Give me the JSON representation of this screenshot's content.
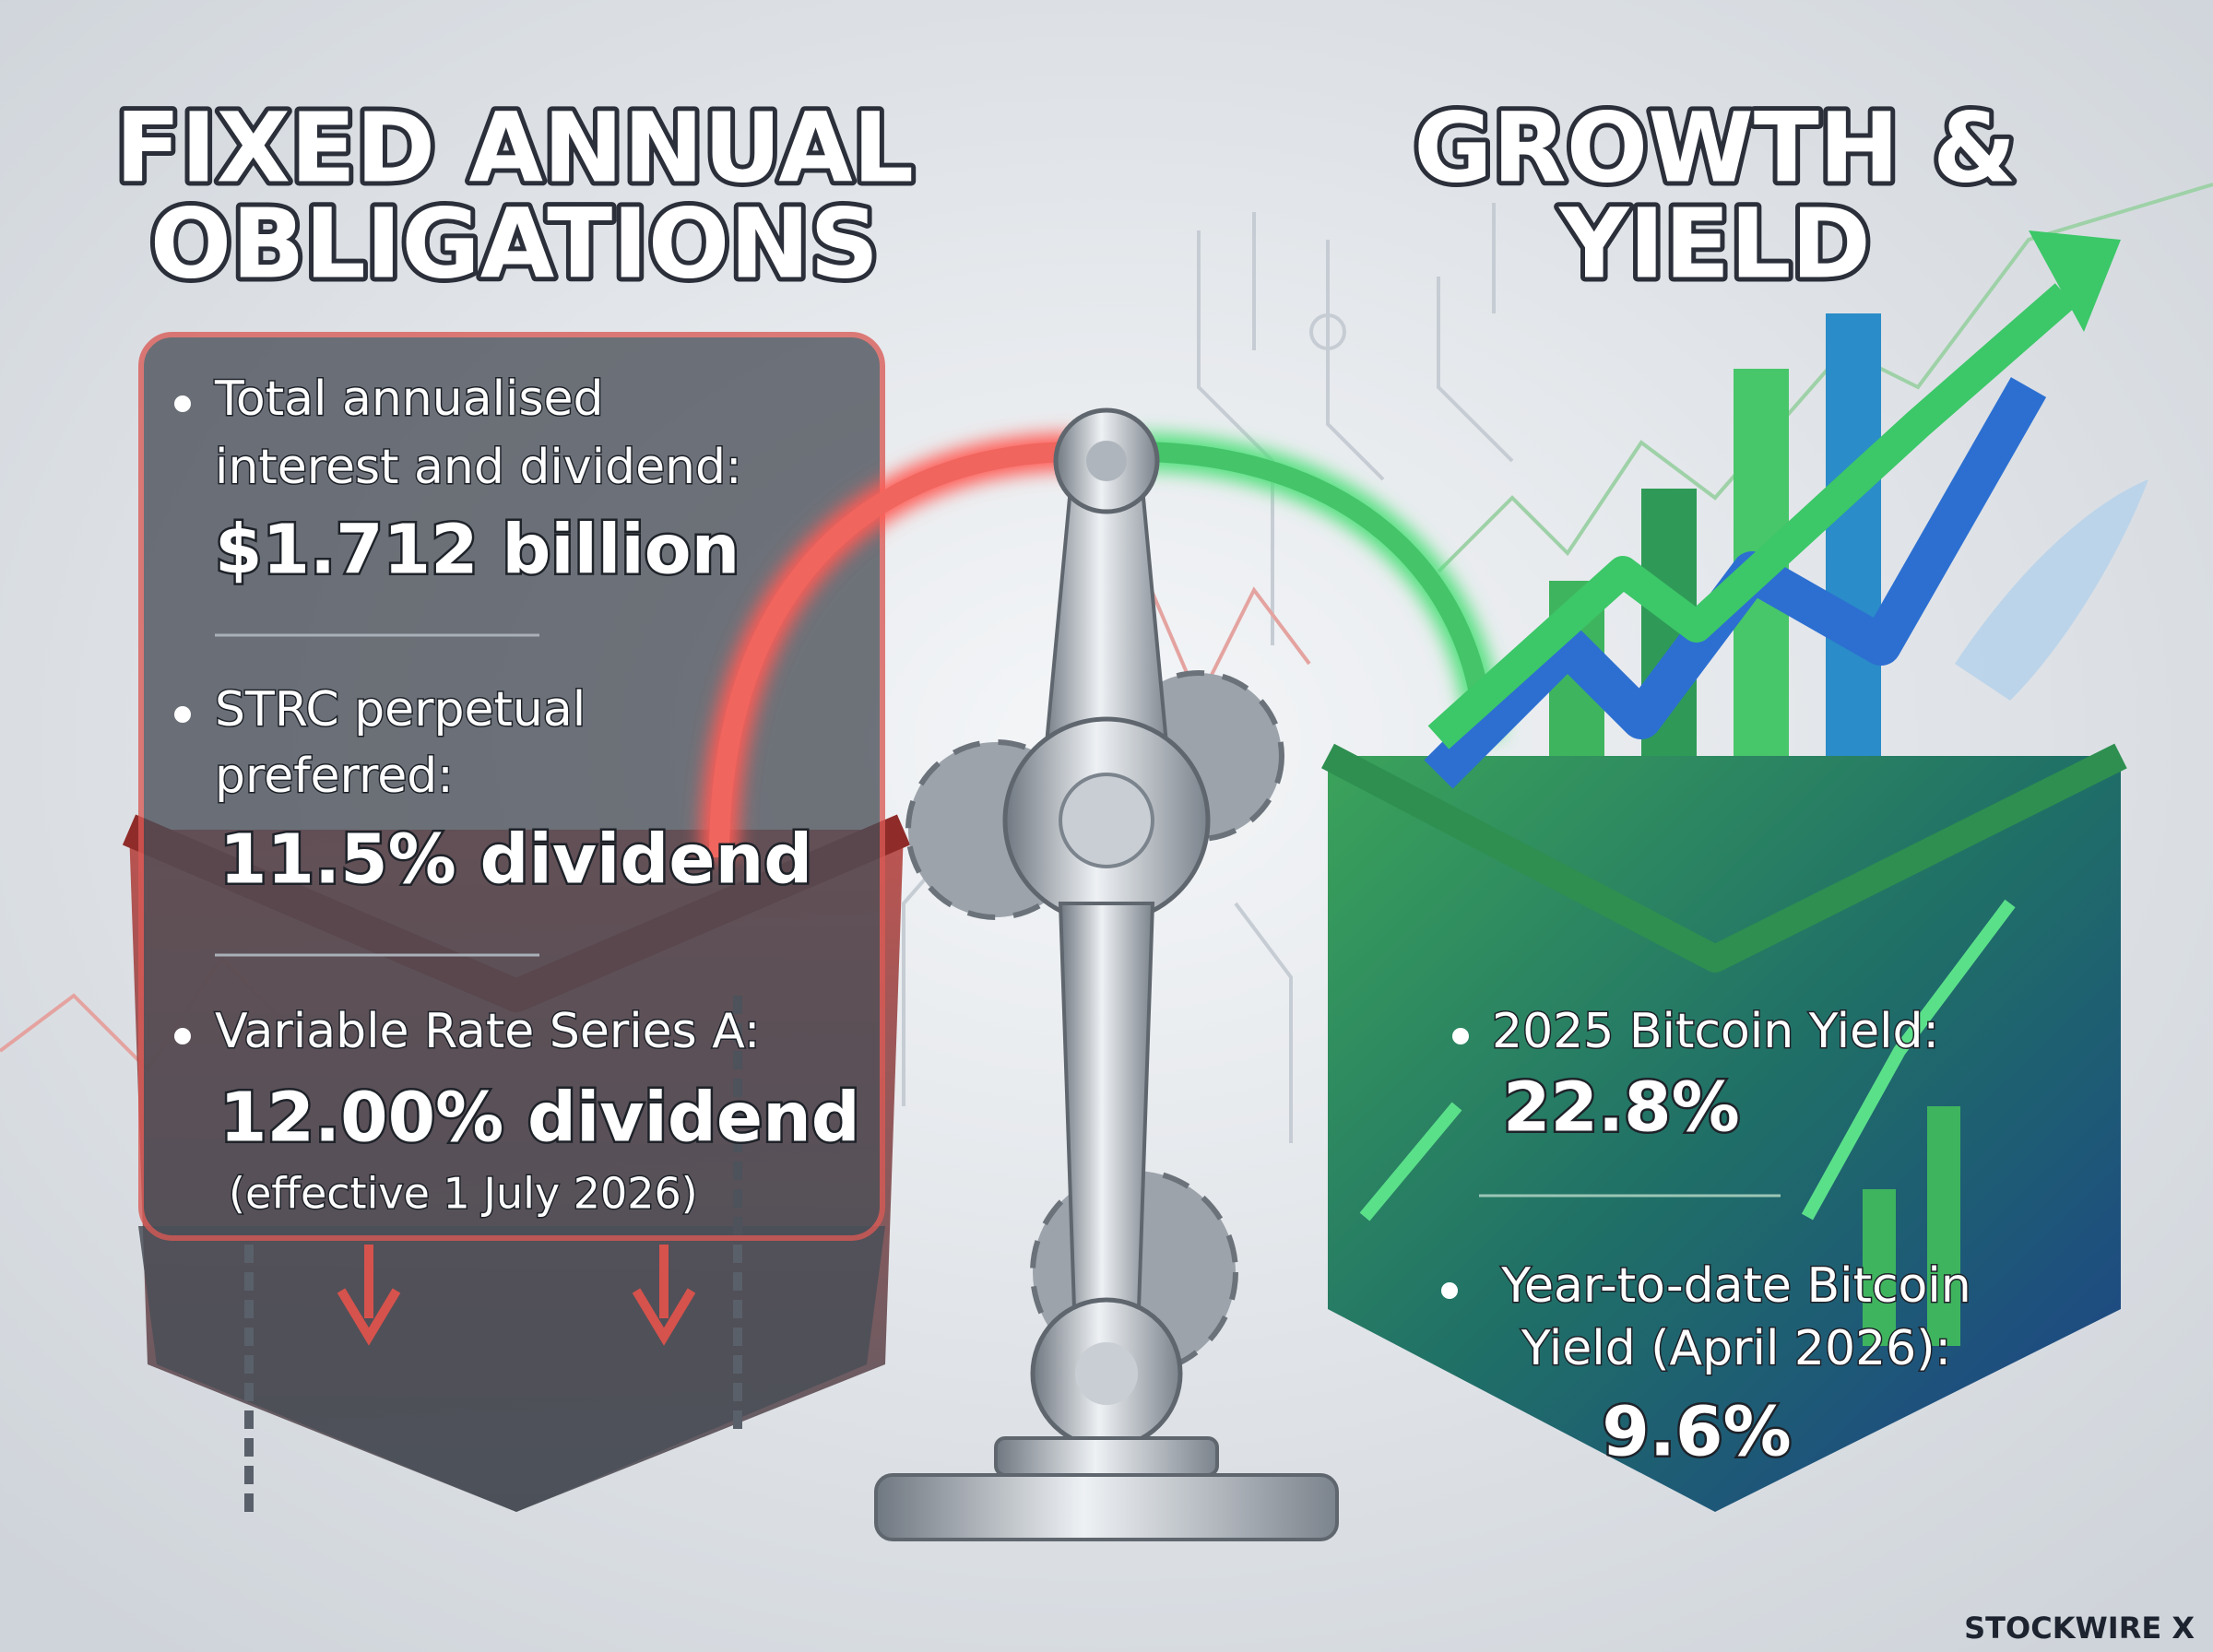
{
  "left": {
    "title": [
      "FIXED ANNUAL",
      "OBLIGATIONS"
    ],
    "items": [
      {
        "label": [
          "Total annualised",
          "interest and dividend:"
        ],
        "value": "$1.712 billion"
      },
      {
        "label": [
          "STRC perpetual",
          "preferred:"
        ],
        "value": "11.5% dividend"
      },
      {
        "label": [
          "Variable Rate Series A:"
        ],
        "value": "12.00% dividend",
        "note": "(effective 1 July 2026)"
      }
    ]
  },
  "right": {
    "title": [
      "GROWTH &",
      "YIELD"
    ],
    "items": [
      {
        "label": [
          "2025 Bitcoin Yield:"
        ],
        "value": "22.8%"
      },
      {
        "label": [
          "Year-to-date Bitcoin",
          "Yield (April 2026):"
        ],
        "value": "9.6%"
      }
    ]
  },
  "brand": "STOCKWIRE X"
}
